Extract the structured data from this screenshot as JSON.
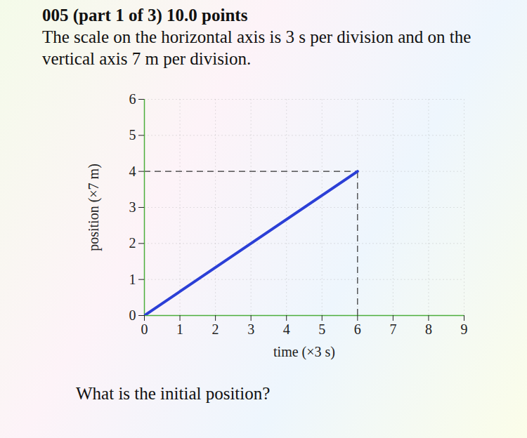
{
  "header": {
    "problem": "005 (part 1 of 3) 10.0 points",
    "statement": "The scale on the horizontal axis is 3 s per division and on the vertical axis 7 m per division.",
    "question": "What is the initial position?"
  },
  "chart_data": {
    "type": "line",
    "x": [
      0,
      6
    ],
    "values": [
      0,
      4
    ],
    "color": "#2b3fd6",
    "xlabel": "time (×3 s)",
    "ylabel": "position (×7 m)",
    "xlim": [
      0,
      9
    ],
    "ylim": [
      0,
      6
    ],
    "xticks": [
      0,
      1,
      2,
      3,
      4,
      5,
      6,
      7,
      8,
      9
    ],
    "yticks": [
      0,
      1,
      2,
      3,
      4,
      5,
      6
    ],
    "grid": true
  }
}
